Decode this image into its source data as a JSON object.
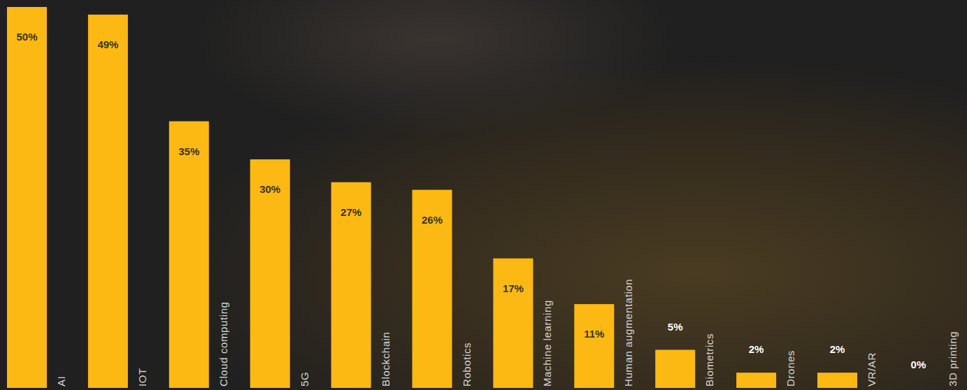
{
  "chart_data": {
    "type": "bar",
    "categories": [
      "AI",
      "IOT",
      "Cloud computing",
      "5G",
      "Blockchain",
      "Robotics",
      "Machine learning",
      "Human augmentation",
      "Biometrics",
      "Drones",
      "VR/AR",
      "3D printing"
    ],
    "values": [
      50,
      49,
      35,
      30,
      27,
      26,
      17,
      11,
      5,
      2,
      2,
      0
    ],
    "value_labels": [
      "50%",
      "49%",
      "35%",
      "30%",
      "27%",
      "26%",
      "17%",
      "11%",
      "5%",
      "2%",
      "2%",
      "0%"
    ],
    "color": "#fdb913",
    "ylim": [
      0,
      50
    ],
    "data_labels": true,
    "tick_labels": false
  }
}
